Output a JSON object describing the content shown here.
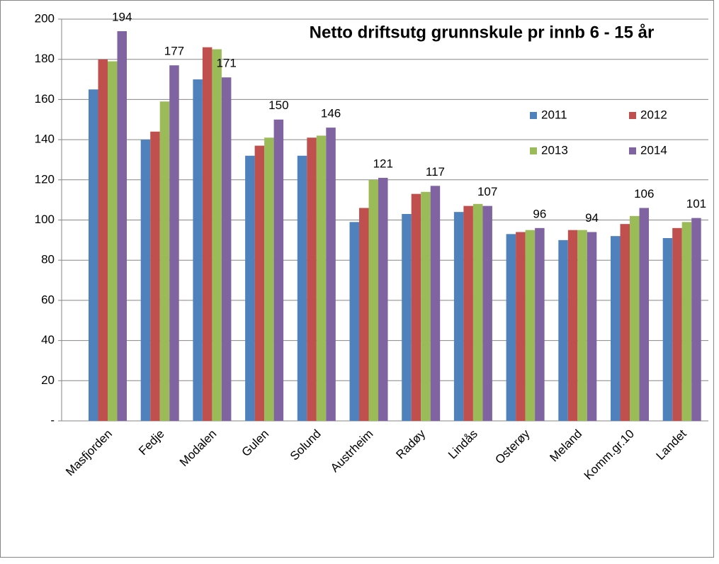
{
  "chart_data": {
    "type": "bar",
    "title": "Netto driftsutg grunnskule pr innb 6 - 15 år",
    "categories": [
      "Masfjorden",
      "Fedje",
      "Modalen",
      "Gulen",
      "Solund",
      "Austrheim",
      "Radøy",
      "Lindås",
      "Osterøy",
      "Meland",
      "Komm.gr.10",
      "Landet"
    ],
    "series": [
      {
        "name": "2011",
        "color": "#4f81bd",
        "values": [
          165,
          140,
          170,
          132,
          132,
          99,
          103,
          104,
          93,
          90,
          92,
          91
        ]
      },
      {
        "name": "2012",
        "color": "#c0504d",
        "values": [
          180,
          144,
          186,
          137,
          141,
          106,
          113,
          107,
          94,
          95,
          98,
          96
        ]
      },
      {
        "name": "2013",
        "color": "#9bbb59",
        "values": [
          179,
          159,
          185,
          141,
          142,
          120,
          114,
          108,
          95,
          95,
          102,
          99
        ]
      },
      {
        "name": "2014",
        "color": "#8064a2",
        "values": [
          194,
          177,
          171,
          150,
          146,
          121,
          117,
          107,
          96,
          94,
          106,
          101
        ],
        "show_labels": true
      }
    ],
    "ylim": [
      0,
      200
    ],
    "yticks": [
      {
        "value": 0,
        "label": "-"
      },
      20,
      40,
      60,
      80,
      100,
      120,
      140,
      160,
      180,
      200
    ],
    "grid": true
  }
}
